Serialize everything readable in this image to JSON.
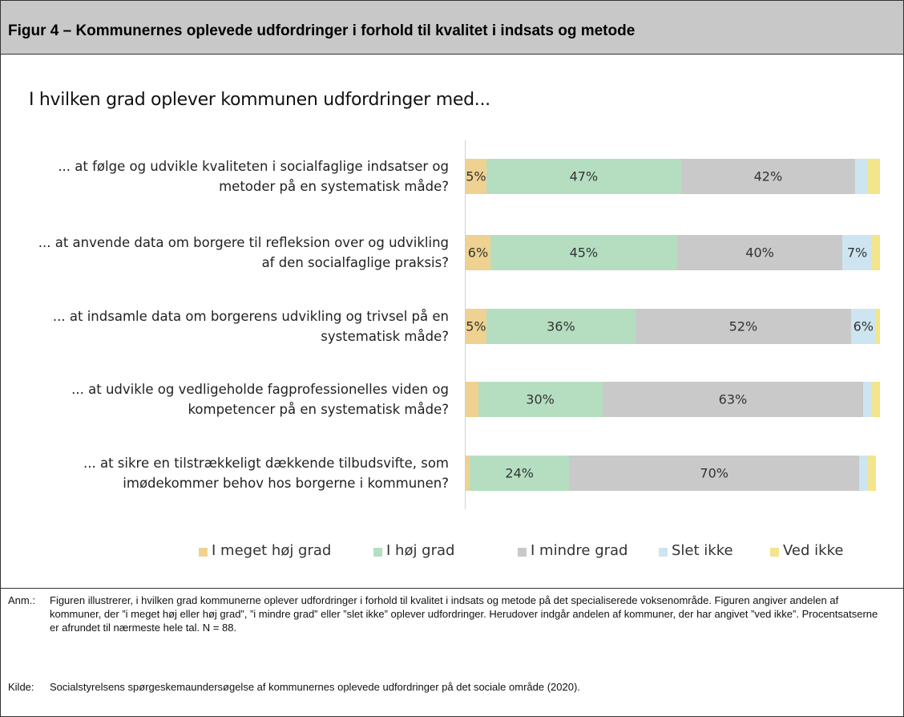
{
  "header": {
    "title": "Figur 4 – Kommunernes oplevede udfordringer i forhold til kvalitet i indsats og metode"
  },
  "chart_data": {
    "type": "bar",
    "orientation": "horizontal",
    "stacked": true,
    "title": "I hvilken grad oplever kommunen udfordringer med...",
    "categories": [
      "... at følge og udvikle kvaliteten i socialfaglige indsatser og metoder på en systematisk måde?",
      "... at anvende data om borgere til refleksion over og udvikling af den socialfaglige praksis?",
      "... at indsamle data om borgerens udvikling og trivsel på en systematisk måde?",
      "... at udvikle og vedligeholde fagprofessionelles viden og kompetencer på en systematisk måde?",
      "... at sikre en tilstrækkeligt dækkende tilbudsvifte, som imødekommer behov hos borgerne i kommunen?"
    ],
    "series": [
      {
        "name": "I meget høj grad",
        "color": "#efd291",
        "values": [
          5,
          6,
          5,
          3,
          1
        ],
        "value_labels": [
          "5%",
          "6%",
          "5%",
          null,
          null
        ]
      },
      {
        "name": "I høj grad",
        "color": "#b5dec1",
        "values": [
          47,
          45,
          36,
          30,
          24
        ],
        "value_labels": [
          "47%",
          "45%",
          "36%",
          "30%",
          "24%"
        ]
      },
      {
        "name": "I mindre grad",
        "color": "#c9c9c9",
        "values": [
          42,
          40,
          52,
          63,
          70
        ],
        "value_labels": [
          "42%",
          "40%",
          "52%",
          "63%",
          "70%"
        ]
      },
      {
        "name": "Slet ikke",
        "color": "#cde5f0",
        "values": [
          3,
          7,
          6,
          2,
          2
        ],
        "value_labels": [
          null,
          "7%",
          "6%",
          null,
          null
        ]
      },
      {
        "name": "Ved ikke",
        "color": "#f2e58b",
        "values": [
          3,
          2,
          1,
          2,
          2
        ],
        "value_labels": [
          null,
          null,
          null,
          null,
          null
        ]
      }
    ],
    "xlim": [
      0,
      100
    ]
  },
  "notes": {
    "label": "Anm.:",
    "text": "Figuren illustrerer, i hvilken grad kommunerne oplever udfordringer i forhold til kvalitet i indsats og metode på det specialiserede voksenområde. Figuren angiver andelen af kommuner, der ”i meget høj eller høj grad”, ”i mindre grad” eller ”slet ikke” oplever udfordringer. Herudover indgår andelen af kommuner, der har angivet ”ved ikke”. Procentsatserne er afrundet til nærmeste hele tal. N = 88."
  },
  "source": {
    "label": "Kilde:",
    "text": "Socialstyrelsens spørgeskemaundersøgelse af kommunernes oplevede udfordringer på det sociale område (2020)."
  }
}
